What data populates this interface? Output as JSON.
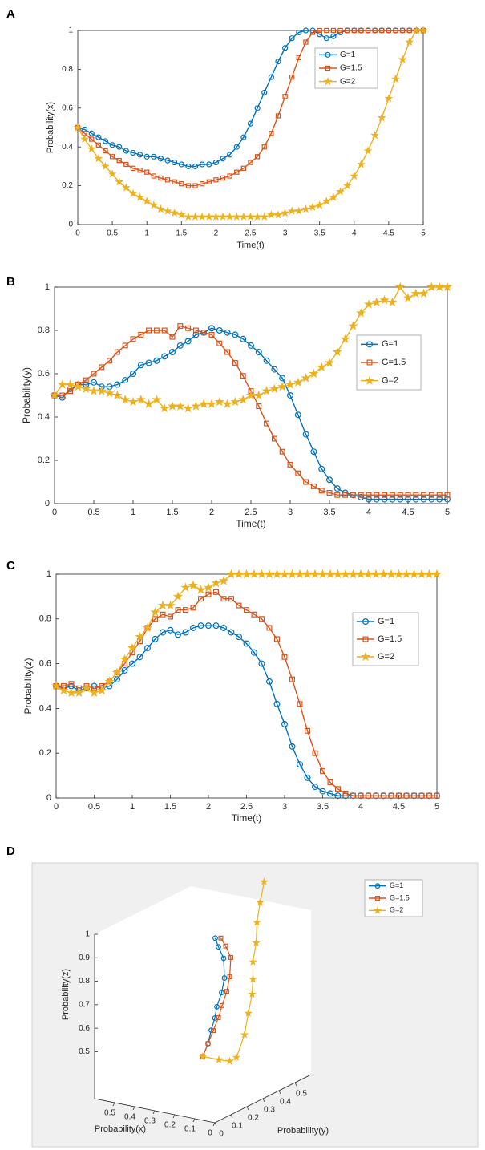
{
  "chart_data": [
    {
      "type": "line",
      "panel_label": "A",
      "xlabel": "Time(t)",
      "ylabel": "Probability(x)",
      "xlim": [
        0,
        5
      ],
      "ylim": [
        0,
        1
      ],
      "xticks": [
        0,
        0.5,
        1,
        1.5,
        2,
        2.5,
        3,
        3.5,
        4,
        4.5,
        5
      ],
      "yticks": [
        0,
        0.2,
        0.4,
        0.6,
        0.8,
        1
      ],
      "x": [
        0,
        0.1,
        0.2,
        0.3,
        0.4,
        0.5,
        0.6,
        0.7,
        0.8,
        0.9,
        1,
        1.1,
        1.2,
        1.3,
        1.4,
        1.5,
        1.6,
        1.7,
        1.8,
        1.9,
        2,
        2.1,
        2.2,
        2.3,
        2.4,
        2.5,
        2.6,
        2.7,
        2.8,
        2.9,
        3,
        3.1,
        3.2,
        3.3,
        3.4,
        3.5,
        3.6,
        3.7,
        3.8,
        3.9,
        4,
        4.1,
        4.2,
        4.3,
        4.4,
        4.5,
        4.6,
        4.7,
        4.8,
        4.9,
        5
      ],
      "series": [
        {
          "name": "G=1",
          "color": "#0072bd",
          "marker": "o",
          "values": [
            0.5,
            0.49,
            0.47,
            0.45,
            0.43,
            0.41,
            0.4,
            0.38,
            0.37,
            0.36,
            0.35,
            0.35,
            0.34,
            0.33,
            0.32,
            0.31,
            0.3,
            0.3,
            0.31,
            0.31,
            0.32,
            0.34,
            0.36,
            0.4,
            0.45,
            0.52,
            0.6,
            0.68,
            0.76,
            0.84,
            0.91,
            0.96,
            0.99,
            1,
            1,
            0.98,
            0.96,
            0.97,
            0.99,
            1,
            1,
            1,
            1,
            1,
            1,
            1,
            1,
            1,
            1,
            1,
            1
          ]
        },
        {
          "name": "G=1.5",
          "color": "#d95319",
          "marker": "s",
          "values": [
            0.5,
            0.47,
            0.44,
            0.41,
            0.38,
            0.35,
            0.33,
            0.31,
            0.29,
            0.28,
            0.27,
            0.25,
            0.24,
            0.23,
            0.22,
            0.21,
            0.2,
            0.2,
            0.21,
            0.22,
            0.23,
            0.24,
            0.25,
            0.27,
            0.29,
            0.32,
            0.35,
            0.4,
            0.47,
            0.56,
            0.66,
            0.76,
            0.86,
            0.94,
            0.99,
            1,
            1,
            1,
            1,
            1,
            1,
            1,
            1,
            1,
            1,
            1,
            1,
            1,
            1,
            1,
            1
          ]
        },
        {
          "name": "G=2",
          "color": "#edb120",
          "marker": "*",
          "values": [
            0.5,
            0.44,
            0.39,
            0.34,
            0.3,
            0.26,
            0.22,
            0.19,
            0.16,
            0.14,
            0.12,
            0.1,
            0.08,
            0.07,
            0.06,
            0.05,
            0.04,
            0.04,
            0.04,
            0.04,
            0.04,
            0.04,
            0.04,
            0.04,
            0.04,
            0.04,
            0.04,
            0.04,
            0.05,
            0.05,
            0.06,
            0.07,
            0.07,
            0.08,
            0.09,
            0.1,
            0.12,
            0.14,
            0.17,
            0.2,
            0.25,
            0.31,
            0.38,
            0.46,
            0.55,
            0.65,
            0.75,
            0.85,
            0.94,
            1,
            1
          ]
        }
      ]
    },
    {
      "type": "line",
      "panel_label": "B",
      "xlabel": "Time(t)",
      "ylabel": "Probability(y)",
      "xlim": [
        0,
        5
      ],
      "ylim": [
        0,
        1
      ],
      "xticks": [
        0,
        0.5,
        1,
        1.5,
        2,
        2.5,
        3,
        3.5,
        4,
        4.5,
        5
      ],
      "yticks": [
        0,
        0.2,
        0.4,
        0.6,
        0.8,
        1
      ],
      "x": [
        0,
        0.1,
        0.2,
        0.3,
        0.4,
        0.5,
        0.6,
        0.7,
        0.8,
        0.9,
        1,
        1.1,
        1.2,
        1.3,
        1.4,
        1.5,
        1.6,
        1.7,
        1.8,
        1.9,
        2,
        2.1,
        2.2,
        2.3,
        2.4,
        2.5,
        2.6,
        2.7,
        2.8,
        2.9,
        3,
        3.1,
        3.2,
        3.3,
        3.4,
        3.5,
        3.6,
        3.7,
        3.8,
        3.9,
        4,
        4.1,
        4.2,
        4.3,
        4.4,
        4.5,
        4.6,
        4.7,
        4.8,
        4.9,
        5
      ],
      "series": [
        {
          "name": "G=1",
          "color": "#0072bd",
          "marker": "o",
          "values": [
            0.5,
            0.49,
            0.53,
            0.55,
            0.55,
            0.56,
            0.54,
            0.54,
            0.55,
            0.57,
            0.6,
            0.64,
            0.65,
            0.66,
            0.68,
            0.7,
            0.73,
            0.75,
            0.78,
            0.79,
            0.81,
            0.8,
            0.79,
            0.78,
            0.76,
            0.73,
            0.7,
            0.66,
            0.62,
            0.58,
            0.5,
            0.41,
            0.32,
            0.24,
            0.16,
            0.11,
            0.07,
            0.05,
            0.04,
            0.03,
            0.02,
            0.02,
            0.02,
            0.02,
            0.02,
            0.02,
            0.02,
            0.02,
            0.02,
            0.02,
            0.02
          ]
        },
        {
          "name": "G=1.5",
          "color": "#d95319",
          "marker": "s",
          "values": [
            0.5,
            0.5,
            0.52,
            0.55,
            0.57,
            0.6,
            0.63,
            0.66,
            0.7,
            0.73,
            0.76,
            0.78,
            0.8,
            0.8,
            0.8,
            0.77,
            0.82,
            0.81,
            0.8,
            0.79,
            0.78,
            0.74,
            0.7,
            0.65,
            0.59,
            0.52,
            0.45,
            0.37,
            0.3,
            0.24,
            0.18,
            0.14,
            0.1,
            0.08,
            0.06,
            0.05,
            0.04,
            0.04,
            0.04,
            0.04,
            0.04,
            0.04,
            0.04,
            0.04,
            0.04,
            0.04,
            0.04,
            0.04,
            0.04,
            0.04,
            0.04
          ]
        },
        {
          "name": "G=2",
          "color": "#edb120",
          "marker": "*",
          "values": [
            0.5,
            0.55,
            0.55,
            0.54,
            0.53,
            0.52,
            0.52,
            0.51,
            0.5,
            0.48,
            0.47,
            0.48,
            0.46,
            0.48,
            0.44,
            0.45,
            0.45,
            0.44,
            0.45,
            0.46,
            0.46,
            0.47,
            0.46,
            0.47,
            0.48,
            0.5,
            0.5,
            0.52,
            0.53,
            0.54,
            0.55,
            0.56,
            0.58,
            0.6,
            0.63,
            0.65,
            0.7,
            0.76,
            0.82,
            0.88,
            0.92,
            0.93,
            0.94,
            0.93,
            1,
            0.95,
            0.97,
            0.97,
            1,
            1,
            1
          ]
        }
      ]
    },
    {
      "type": "line",
      "panel_label": "C",
      "xlabel": "Time(t)",
      "ylabel": "Probability(z)",
      "xlim": [
        0,
        5
      ],
      "ylim": [
        0,
        1
      ],
      "xticks": [
        0,
        0.5,
        1,
        1.5,
        2,
        2.5,
        3,
        3.5,
        4,
        4.5,
        5
      ],
      "yticks": [
        0,
        0.2,
        0.4,
        0.6,
        0.8,
        1
      ],
      "x": [
        0,
        0.1,
        0.2,
        0.3,
        0.4,
        0.5,
        0.6,
        0.7,
        0.8,
        0.9,
        1,
        1.1,
        1.2,
        1.3,
        1.4,
        1.5,
        1.6,
        1.7,
        1.8,
        1.9,
        2,
        2.1,
        2.2,
        2.3,
        2.4,
        2.5,
        2.6,
        2.7,
        2.8,
        2.9,
        3,
        3.1,
        3.2,
        3.3,
        3.4,
        3.5,
        3.6,
        3.7,
        3.8,
        3.9,
        4,
        4.1,
        4.2,
        4.3,
        4.4,
        4.5,
        4.6,
        4.7,
        4.8,
        4.9,
        5
      ],
      "series": [
        {
          "name": "G=1",
          "color": "#0072bd",
          "marker": "o",
          "values": [
            0.5,
            0.49,
            0.5,
            0.48,
            0.49,
            0.5,
            0.49,
            0.5,
            0.53,
            0.57,
            0.6,
            0.63,
            0.67,
            0.71,
            0.74,
            0.75,
            0.73,
            0.74,
            0.76,
            0.77,
            0.77,
            0.77,
            0.76,
            0.74,
            0.72,
            0.69,
            0.65,
            0.6,
            0.52,
            0.42,
            0.33,
            0.23,
            0.15,
            0.09,
            0.05,
            0.03,
            0.02,
            0.01,
            0.01,
            0.01,
            0.01,
            0.01,
            0.01,
            0.01,
            0.01,
            0.01,
            0.01,
            0.01,
            0.01,
            0.01,
            0.01
          ]
        },
        {
          "name": "G=1.5",
          "color": "#d95319",
          "marker": "s",
          "values": [
            0.5,
            0.5,
            0.51,
            0.49,
            0.5,
            0.49,
            0.5,
            0.52,
            0.56,
            0.6,
            0.65,
            0.7,
            0.76,
            0.8,
            0.82,
            0.81,
            0.84,
            0.84,
            0.85,
            0.89,
            0.91,
            0.92,
            0.89,
            0.89,
            0.86,
            0.84,
            0.82,
            0.8,
            0.76,
            0.71,
            0.63,
            0.53,
            0.42,
            0.3,
            0.2,
            0.12,
            0.07,
            0.04,
            0.02,
            0.01,
            0.01,
            0.01,
            0.01,
            0.01,
            0.01,
            0.01,
            0.01,
            0.01,
            0.01,
            0.01,
            0.01
          ]
        },
        {
          "name": "G=2",
          "color": "#edb120",
          "marker": "*",
          "values": [
            0.5,
            0.48,
            0.47,
            0.47,
            0.49,
            0.47,
            0.48,
            0.52,
            0.56,
            0.62,
            0.67,
            0.72,
            0.76,
            0.83,
            0.86,
            0.86,
            0.9,
            0.94,
            0.95,
            0.93,
            0.94,
            0.96,
            0.97,
            1,
            1,
            1,
            1,
            1,
            1,
            1,
            1,
            1,
            1,
            1,
            1,
            1,
            1,
            1,
            1,
            1,
            1,
            1,
            1,
            1,
            1,
            1,
            1,
            1,
            1,
            1,
            1
          ]
        }
      ]
    },
    {
      "type": "line3d",
      "panel_label": "D",
      "xlabel": "Probability(x)",
      "ylabel": "Probability(y)",
      "zlabel": "Probability(z)",
      "xlim": [
        0,
        0.6
      ],
      "ylim": [
        0,
        0.6
      ],
      "zlim": [
        0.3,
        1
      ],
      "xticks": [
        0,
        0.1,
        0.2,
        0.3,
        0.4,
        0.5
      ],
      "yticks": [
        0,
        0.1,
        0.2,
        0.3,
        0.4,
        0.5
      ],
      "zticks": [
        0.5,
        0.6,
        0.7,
        0.8,
        0.9,
        1
      ],
      "series": [
        {
          "name": "G=1",
          "color": "#0072bd",
          "marker": "o",
          "x": [
            0.18,
            0.17,
            0.17,
            0.16,
            0.15,
            0.15,
            0.16,
            0.22,
            0.27,
            0.31
          ],
          "y": [
            0.15,
            0.17,
            0.19,
            0.2,
            0.2,
            0.23,
            0.26,
            0.33,
            0.36,
            0.39
          ],
          "z": [
            0.5,
            0.55,
            0.6,
            0.65,
            0.7,
            0.75,
            0.8,
            0.85,
            0.88,
            0.9
          ]
        },
        {
          "name": "G=1.5",
          "color": "#d95319",
          "marker": "s",
          "x": [
            0.18,
            0.17,
            0.16,
            0.15,
            0.14,
            0.14,
            0.15,
            0.2,
            0.25,
            0.29
          ],
          "y": [
            0.15,
            0.17,
            0.19,
            0.21,
            0.22,
            0.25,
            0.28,
            0.35,
            0.38,
            0.4
          ],
          "z": [
            0.5,
            0.55,
            0.6,
            0.65,
            0.7,
            0.75,
            0.8,
            0.85,
            0.88,
            0.9
          ]
        },
        {
          "name": "G=2",
          "color": "#edb120",
          "marker": "*",
          "x": [
            0.18,
            0.1,
            0.05,
            0.02,
            0.02,
            0.025,
            0.03,
            0.05,
            0.09,
            0.13,
            0.19,
            0.27,
            0.37
          ],
          "y": [
            0.15,
            0.15,
            0.155,
            0.16,
            0.21,
            0.24,
            0.27,
            0.3,
            0.35,
            0.42,
            0.5,
            0.62,
            0.77
          ],
          "z": [
            0.5,
            0.5,
            0.5,
            0.52,
            0.6,
            0.68,
            0.75,
            0.8,
            0.85,
            0.9,
            0.95,
            0.98,
            1
          ]
        }
      ]
    }
  ]
}
